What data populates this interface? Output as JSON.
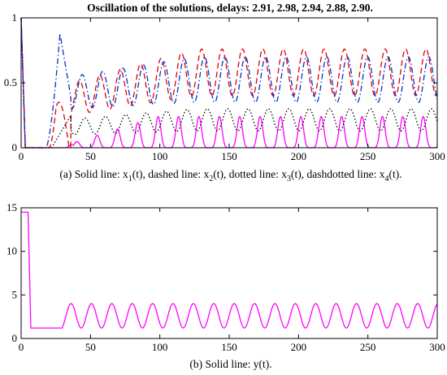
{
  "figure_title": "Oscillation of the solutions, delays: 2.91, 2.98, 2.94, 2.88, 2.90.",
  "colors": {
    "x1": "#ff00ff",
    "x2": "#e00000",
    "x3": "#000000",
    "x4": "#0033cc",
    "y": "#ff00ff"
  },
  "chart_data": [
    {
      "type": "line",
      "caption_parts": [
        "(a) Solid line: x",
        "1",
        "(t), dashed line: x",
        "2",
        "(t), dotted line: x",
        "3",
        "(t), dashdotted line: x",
        "4",
        "(t)."
      ],
      "xlim": [
        0,
        300
      ],
      "ylim": [
        0,
        1
      ],
      "xticks": [
        0,
        50,
        100,
        150,
        200,
        250,
        300
      ],
      "yticks": [
        0,
        0.5,
        1
      ],
      "ytick_labels": [
        "0",
        "0.5",
        "1"
      ],
      "grid": false,
      "series": [
        {
          "key": "x1",
          "style": "solid",
          "approx": {
            "start": 1.0,
            "onset": 40,
            "peak": 0.24,
            "trough": 0.0,
            "period": 14.7
          }
        },
        {
          "key": "x2",
          "style": "dashed",
          "approx": {
            "start": 1.0,
            "onset": 25,
            "first_peak": 0.35,
            "peak": 0.76,
            "trough": 0.4,
            "period": 14.7
          }
        },
        {
          "key": "x3",
          "style": "dotted",
          "approx": {
            "start": 1.0,
            "onset": 25,
            "peak": 0.3,
            "trough": 0.12,
            "period": 14.7
          }
        },
        {
          "key": "x4",
          "style": "dashdot",
          "approx": {
            "start": 1.0,
            "onset": 20,
            "first_peak": 0.88,
            "first_peak_x": 28,
            "peak": 0.7,
            "trough": 0.35,
            "period": 14.7
          }
        }
      ]
    },
    {
      "type": "line",
      "caption": "(b) Solid line: y(t).",
      "xlim": [
        0,
        300
      ],
      "ylim": [
        0,
        15
      ],
      "xticks": [
        0,
        50,
        100,
        150,
        200,
        250,
        300
      ],
      "yticks": [
        0,
        5,
        10,
        15
      ],
      "grid": false,
      "series": [
        {
          "key": "y",
          "style": "solid",
          "approx": {
            "start": 14.5,
            "drop_at": 5,
            "flat": 1.2,
            "onset": 30,
            "peak": 4.0,
            "trough": 1.2,
            "period": 14.7
          }
        }
      ]
    }
  ]
}
